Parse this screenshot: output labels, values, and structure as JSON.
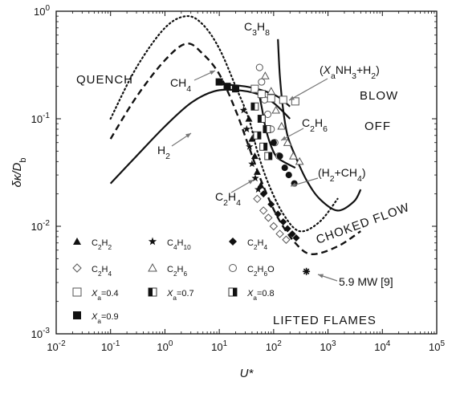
{
  "chart_data": {
    "type": "scatter",
    "xlabel": "U*",
    "ylabel": "δκ/D_b",
    "xscale": "log",
    "yscale": "log",
    "xlim": [
      0.01,
      100000
    ],
    "ylim": [
      0.001,
      1
    ],
    "x_ticks": [
      {
        "base": "10",
        "exp": "-2",
        "value": 0.01
      },
      {
        "base": "10",
        "exp": "-1",
        "value": 0.1
      },
      {
        "base": "10",
        "exp": "0",
        "value": 1
      },
      {
        "base": "10",
        "exp": "1",
        "value": 10
      },
      {
        "base": "10",
        "exp": "2",
        "value": 100
      },
      {
        "base": "10",
        "exp": "3",
        "value": 1000
      },
      {
        "base": "10",
        "exp": "4",
        "value": 10000
      },
      {
        "base": "10",
        "exp": "5",
        "value": 100000
      }
    ],
    "y_ticks": [
      {
        "base": "10",
        "exp": "0",
        "value": 1
      },
      {
        "base": "10",
        "exp": "-1",
        "value": 0.1
      },
      {
        "base": "10",
        "exp": "-2",
        "value": 0.01
      },
      {
        "base": "10",
        "exp": "-3",
        "value": 0.001
      }
    ],
    "regions": [
      "QUENCH",
      "BLOW",
      "OFF",
      "CHOKED FLOW",
      "LIFTED FLAMES"
    ],
    "curves": [
      {
        "name": "C3H8",
        "style": "dotted",
        "points": [
          [
            0.1,
            0.1
          ],
          [
            0.3,
            0.3
          ],
          [
            1,
            0.7
          ],
          [
            2.5,
            0.9
          ],
          [
            5,
            0.75
          ],
          [
            10,
            0.45
          ],
          [
            20,
            0.2
          ],
          [
            35,
            0.1
          ],
          [
            50,
            0.05
          ],
          [
            80,
            0.025
          ],
          [
            150,
            0.013
          ],
          [
            300,
            0.009
          ],
          [
            700,
            0.011
          ],
          [
            1500,
            0.018
          ]
        ]
      },
      {
        "name": "CH4",
        "style": "dashed",
        "points": [
          [
            0.1,
            0.065
          ],
          [
            0.3,
            0.16
          ],
          [
            1,
            0.35
          ],
          [
            2.5,
            0.5
          ],
          [
            5,
            0.4
          ],
          [
            10,
            0.26
          ],
          [
            20,
            0.12
          ],
          [
            35,
            0.055
          ],
          [
            60,
            0.026
          ],
          [
            120,
            0.012
          ],
          [
            250,
            0.007
          ],
          [
            500,
            0.0055
          ],
          [
            1500,
            0.0065
          ],
          [
            4000,
            0.009
          ]
        ]
      },
      {
        "name": "C2H6",
        "style": "solid",
        "points": [
          [
            120,
            0.55
          ],
          [
            130,
            0.25
          ],
          [
            150,
            0.12
          ],
          [
            180,
            0.07
          ],
          [
            250,
            0.045
          ],
          [
            400,
            0.027
          ],
          [
            700,
            0.018
          ],
          [
            1500,
            0.014
          ],
          [
            3000,
            0.017
          ],
          [
            4000,
            0.022
          ]
        ]
      },
      {
        "name": "H2",
        "style": "solid",
        "points": [
          [
            0.1,
            0.025
          ],
          [
            0.3,
            0.045
          ],
          [
            1,
            0.085
          ],
          [
            3,
            0.14
          ],
          [
            8,
            0.18
          ],
          [
            20,
            0.185
          ],
          [
            50,
            0.17
          ],
          [
            100,
            0.14
          ],
          [
            200,
            0.1
          ]
        ]
      },
      {
        "name": "(H2+CH4)",
        "style": "solid",
        "points": [
          [
            10,
            0.21
          ],
          [
            30,
            0.2
          ],
          [
            70,
            0.18
          ],
          [
            120,
            0.16
          ],
          [
            200,
            0.13
          ]
        ]
      },
      {
        "name": "(Xa NH3+H2)",
        "style": "solid",
        "points": [
          [
            50,
            0.2
          ],
          [
            60,
            0.13
          ],
          [
            70,
            0.085
          ],
          [
            85,
            0.06
          ],
          [
            110,
            0.045
          ],
          [
            150,
            0.04
          ],
          [
            250,
            0.035
          ]
        ]
      }
    ],
    "series": [
      {
        "name": "C2H2",
        "marker": "triangle-filled",
        "points": [
          [
            35,
            0.1
          ],
          [
            40,
            0.065
          ],
          [
            45,
            0.045
          ],
          [
            50,
            0.032
          ],
          [
            58,
            0.024
          ]
        ]
      },
      {
        "name": "C4H10",
        "marker": "star",
        "points": [
          [
            28,
            0.12
          ],
          [
            32,
            0.08
          ],
          [
            36,
            0.055
          ],
          [
            40,
            0.038
          ],
          [
            46,
            0.028
          ],
          [
            52,
            0.022
          ]
        ]
      },
      {
        "name": "C2H4",
        "marker": "diamond-filled",
        "points": [
          [
            65,
            0.02
          ],
          [
            90,
            0.016
          ],
          [
            120,
            0.013
          ],
          [
            150,
            0.011
          ],
          [
            180,
            0.0095
          ],
          [
            220,
            0.0085
          ],
          [
            260,
            0.0078
          ]
        ]
      },
      {
        "name": "C2H4",
        "marker": "diamond-open",
        "points": [
          [
            50,
            0.018
          ],
          [
            65,
            0.014
          ],
          [
            80,
            0.012
          ],
          [
            100,
            0.01
          ],
          [
            130,
            0.0085
          ],
          [
            170,
            0.0075
          ]
        ]
      },
      {
        "name": "C2H6",
        "marker": "triangle-open",
        "points": [
          [
            70,
            0.25
          ],
          [
            90,
            0.18
          ],
          [
            110,
            0.12
          ],
          [
            140,
            0.085
          ],
          [
            180,
            0.06
          ],
          [
            230,
            0.045
          ],
          [
            300,
            0.04
          ]
        ]
      },
      {
        "name": "C2H6O",
        "marker": "circle-open",
        "points": [
          [
            55,
            0.3
          ],
          [
            60,
            0.22
          ],
          [
            68,
            0.15
          ],
          [
            78,
            0.11
          ],
          [
            90,
            0.08
          ],
          [
            105,
            0.06
          ],
          [
            125,
            0.045
          ]
        ]
      },
      {
        "name": "Xa=0.4",
        "marker": "square-open",
        "points": [
          [
            45,
            0.19
          ],
          [
            60,
            0.17
          ],
          [
            90,
            0.155
          ],
          [
            150,
            0.15
          ],
          [
            250,
            0.145
          ]
        ]
      },
      {
        "name": "Xa=0.7",
        "marker": "square-half-left",
        "points": [
          [
            45,
            0.13
          ],
          [
            60,
            0.1
          ],
          [
            75,
            0.08
          ]
        ]
      },
      {
        "name": "Xa=0.8",
        "marker": "square-half-right",
        "points": [
          [
            50,
            0.07
          ],
          [
            65,
            0.055
          ],
          [
            80,
            0.045
          ]
        ]
      },
      {
        "name": "Xa=0.9",
        "marker": "square-filled",
        "points": [
          [
            10,
            0.22
          ],
          [
            14,
            0.2
          ],
          [
            20,
            0.19
          ]
        ]
      },
      {
        "name": "H2+CH4 data",
        "marker": "circle-filled",
        "points": [
          [
            100,
            0.06
          ],
          [
            130,
            0.045
          ],
          [
            160,
            0.035
          ],
          [
            190,
            0.03
          ],
          [
            240,
            0.025
          ]
        ]
      },
      {
        "name": "5.9 MW",
        "marker": "asterisk",
        "points": [
          [
            400,
            0.0038
          ]
        ]
      }
    ],
    "annotations": [
      {
        "text": "C3H8",
        "sub": [
          "3",
          "8"
        ]
      },
      {
        "text": "CH4",
        "sub": [
          "4"
        ]
      },
      {
        "text": "(XaNH3+H2)"
      },
      {
        "text": "C2H6"
      },
      {
        "text": "H2"
      },
      {
        "text": "(H2+CH4)"
      },
      {
        "text": "C2H4"
      },
      {
        "text": "5.9 MW",
        "ref": "[9]"
      }
    ],
    "legend": [
      {
        "marker": "triangle-filled",
        "label_parts": [
          [
            "C",
            ""
          ],
          [
            "2",
            "sub"
          ],
          [
            "H",
            ""
          ],
          [
            "2",
            "sub"
          ]
        ]
      },
      {
        "marker": "star",
        "label_parts": [
          [
            "C",
            ""
          ],
          [
            "4",
            "sub"
          ],
          [
            "H",
            ""
          ],
          [
            "10",
            "sub"
          ]
        ]
      },
      {
        "marker": "diamond-filled",
        "label_parts": [
          [
            "C",
            ""
          ],
          [
            "2",
            "sub"
          ],
          [
            "H",
            ""
          ],
          [
            "4",
            "sub"
          ]
        ]
      },
      {
        "marker": "diamond-open",
        "label_parts": [
          [
            "C",
            ""
          ],
          [
            "2",
            "sub"
          ],
          [
            "H",
            ""
          ],
          [
            "4",
            "sub"
          ]
        ]
      },
      {
        "marker": "triangle-open",
        "label_parts": [
          [
            "C",
            ""
          ],
          [
            "2",
            "sub"
          ],
          [
            "H",
            ""
          ],
          [
            "6",
            "sub"
          ]
        ]
      },
      {
        "marker": "circle-open",
        "label_parts": [
          [
            "C",
            ""
          ],
          [
            "2",
            "sub"
          ],
          [
            "H",
            ""
          ],
          [
            "6",
            "sub"
          ],
          [
            "O",
            ""
          ]
        ]
      },
      {
        "marker": "square-open",
        "label_parts": [
          [
            "X",
            "it"
          ],
          [
            "a",
            "sub"
          ],
          [
            "=0.4",
            ""
          ]
        ]
      },
      {
        "marker": "square-half-left",
        "label_parts": [
          [
            "X",
            "it"
          ],
          [
            "a",
            "sub"
          ],
          [
            "=0.7",
            ""
          ]
        ]
      },
      {
        "marker": "square-half-right",
        "label_parts": [
          [
            "X",
            "it"
          ],
          [
            "a",
            "sub"
          ],
          [
            "=0.8",
            ""
          ]
        ]
      },
      {
        "marker": "square-filled",
        "label_parts": [
          [
            "X",
            "it"
          ],
          [
            "a",
            "sub"
          ],
          [
            "=0.9",
            ""
          ]
        ]
      }
    ]
  }
}
